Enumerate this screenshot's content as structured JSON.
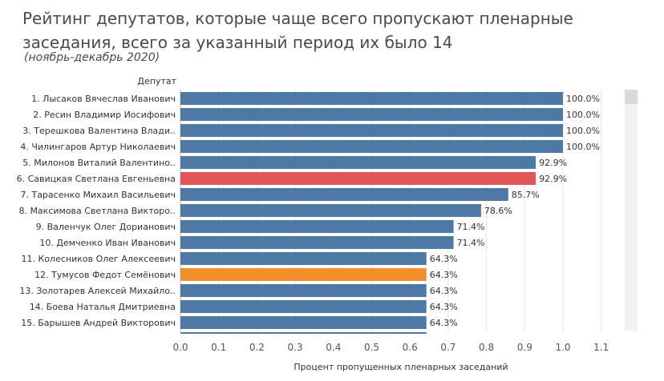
{
  "title": "Рейтинг депутатов, которые чаще всего пропускают пленарные заседания, всего за указанный период их было 14",
  "subtitle": "(ноябрь-декабрь 2020)",
  "colors": {
    "default": "#4e79a7",
    "highlight_red": "#e15759",
    "highlight_orange": "#f28e2b",
    "grid": "#e6e6e6"
  },
  "chart_data": {
    "type": "bar",
    "orientation": "horizontal",
    "ylabel": "Депутат",
    "xlabel": "Процент пропущенных пленарных заседаний",
    "xlim": [
      0,
      1.15
    ],
    "xticks": [
      "0.0",
      "0.1",
      "0.2",
      "0.3",
      "0.4",
      "0.5",
      "0.6",
      "0.7",
      "0.8",
      "0.9",
      "1.0",
      "1.1"
    ],
    "grid": true,
    "categories": [
      "1. Лысаков Вячеслав Иванович",
      "2. Ресин Владимир Иосифович",
      "3. Терешкова Валентина Влади..",
      "4. Чилингаров Артур Николаевич",
      "5. Милонов Виталий Валентино..",
      "6. Савицкая Светлана Евгеньевна",
      "7. Тарасенко Михаил Васильевич",
      "8. Максимова Светлана Викторо..",
      "9. Валенчук Олег Дорианович",
      "10. Демченко Иван Иванович",
      "11. Колесников Олег Алексеевич",
      "12. Тумусов Федот Семёнович",
      "13. Золотарев Алексей Михайло..",
      "14. Боева Наталья Дмитриевна",
      "15. Барышев Андрей Викторович"
    ],
    "values": [
      1.0,
      1.0,
      1.0,
      1.0,
      0.929,
      0.929,
      0.857,
      0.786,
      0.714,
      0.714,
      0.643,
      0.643,
      0.643,
      0.643,
      0.643
    ],
    "labels": [
      "100.0%",
      "100.0%",
      "100.0%",
      "100.0%",
      "92.9%",
      "92.9%",
      "85.7%",
      "78.6%",
      "71.4%",
      "71.4%",
      "64.3%",
      "64.3%",
      "64.3%",
      "64.3%",
      "64.3%"
    ],
    "bar_colors": [
      "default",
      "default",
      "default",
      "default",
      "default",
      "highlight_red",
      "default",
      "default",
      "default",
      "default",
      "default",
      "highlight_orange",
      "default",
      "default",
      "default"
    ]
  }
}
